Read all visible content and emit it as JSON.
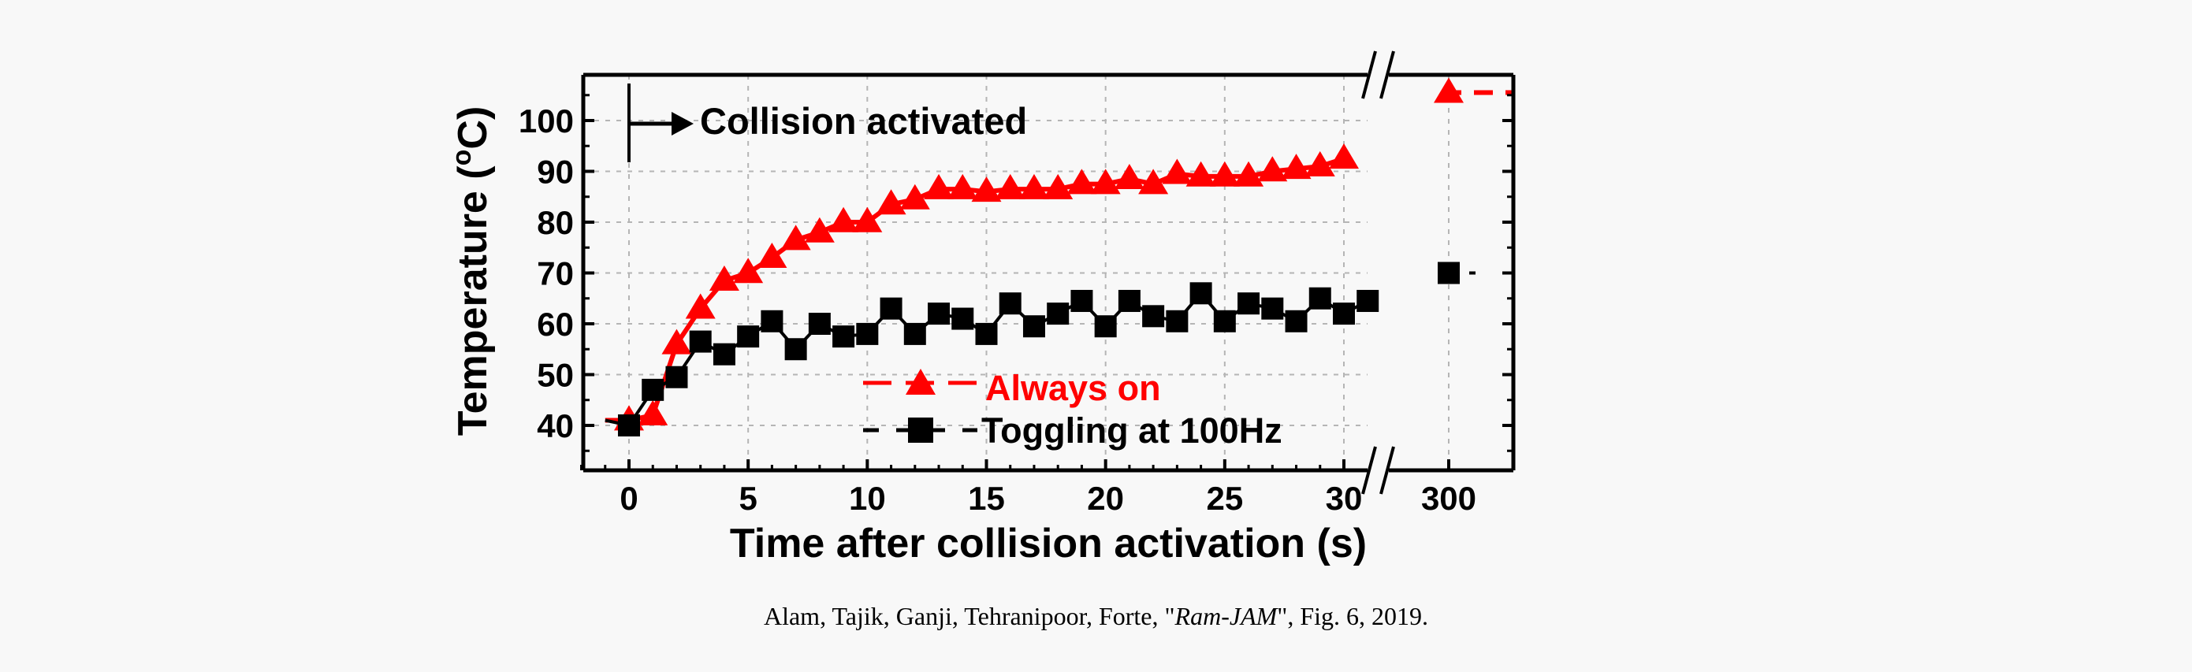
{
  "chart_data": {
    "type": "line",
    "xlabel": "Time after collision activation (s)",
    "ylabel_main": "Temperature (",
    "ylabel_sup": "o",
    "ylabel_end": "C)",
    "xlim": [
      -2,
      33
    ],
    "ylim": [
      31,
      109
    ],
    "x_ticks": [
      0,
      5,
      10,
      15,
      20,
      25,
      30
    ],
    "x_tick_labels": [
      "0",
      "5",
      "10",
      "15",
      "20",
      "25",
      "30"
    ],
    "x_break_tick": {
      "value": 300,
      "label": "300"
    },
    "y_ticks": [
      40,
      50,
      60,
      70,
      80,
      90,
      100
    ],
    "y_tick_labels": [
      "40",
      "50",
      "60",
      "70",
      "80",
      "90",
      "100"
    ],
    "grid": true,
    "legend_position": "bottom-center",
    "annotation": "Collision activated",
    "series": [
      {
        "name": "Always on",
        "color": "#ff0000",
        "marker": "triangle",
        "x": [
          -1,
          0,
          1,
          2,
          3,
          4,
          5,
          6,
          7,
          8,
          9,
          10,
          11,
          12,
          13,
          14,
          15,
          16,
          17,
          18,
          19,
          20,
          21,
          22,
          23,
          24,
          25,
          26,
          27,
          28,
          29,
          30
        ],
        "y": [
          41,
          41,
          42,
          56,
          63,
          68.5,
          70,
          73,
          76.5,
          78,
          80,
          80,
          83.5,
          84.5,
          86.5,
          86.5,
          86,
          86.5,
          86.5,
          86.5,
          87.5,
          87.5,
          88.5,
          87.5,
          89.5,
          89,
          89,
          89,
          90,
          90.5,
          91,
          92.5
        ],
        "after_break": {
          "x": 300,
          "y": 105.5
        }
      },
      {
        "name": "Toggling at 100Hz",
        "color": "#000000",
        "marker": "square",
        "x": [
          -1,
          0,
          1,
          2,
          3,
          4,
          5,
          6,
          7,
          8,
          9,
          10,
          11,
          12,
          13,
          14,
          15,
          16,
          17,
          18,
          19,
          20,
          21,
          22,
          23,
          24,
          25,
          26,
          27,
          28,
          29,
          30,
          31
        ],
        "y": [
          41,
          40,
          47,
          49.5,
          56.5,
          54,
          57.5,
          60.5,
          55,
          60,
          57.5,
          58,
          63,
          58,
          62,
          61,
          58,
          64,
          59.5,
          62,
          64.5,
          59.5,
          64.5,
          61.5,
          60.5,
          66,
          60.5,
          64,
          63,
          60.5,
          65,
          62,
          64.5
        ],
        "after_break": {
          "x": 300,
          "y": 70
        }
      }
    ]
  },
  "caption": {
    "before": "Alam, Tajik, Ganji, Tehranipoor, Forte, \"",
    "italic": "Ram-JAM",
    "after": "\", Fig. 6, 2019."
  }
}
